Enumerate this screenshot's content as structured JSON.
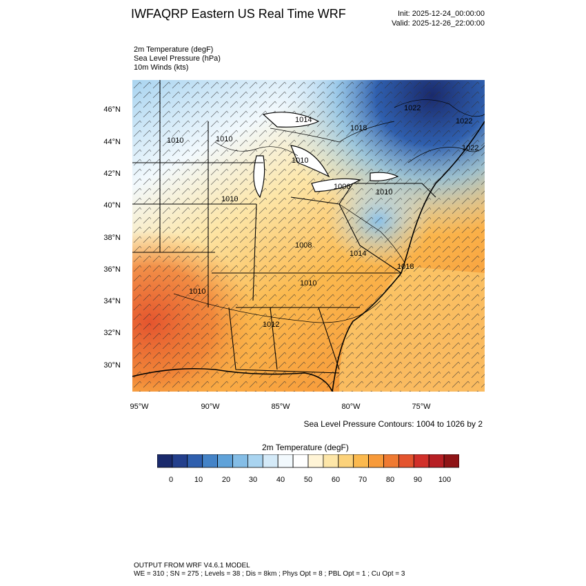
{
  "header": {
    "title": "IWFAQRP Eastern US Real Time WRF",
    "init": "Init: 2025-12-24_00:00:00",
    "valid": "Valid: 2025-12-26_22:00:00"
  },
  "variables": [
    "2m Temperature   (degF)",
    "Sea Level Pressure   (hPa)",
    "10m Winds   (kts)"
  ],
  "axes": {
    "lat_labels": [
      "46°N",
      "44°N",
      "42°N",
      "40°N",
      "38°N",
      "36°N",
      "34°N",
      "32°N",
      "30°N"
    ],
    "lon_labels": [
      "95°W",
      "90°W",
      "85°W",
      "80°W",
      "75°W"
    ]
  },
  "isobar_labels": [
    "1014",
    "1010",
    "1010",
    "1010",
    "1018",
    "1022",
    "1022",
    "1022",
    "1010",
    "1006",
    "1010",
    "1008",
    "1014",
    "1018",
    "1010",
    "1010",
    "1012"
  ],
  "contour_note": "Sea Level Pressure Contours: 1004 to 1026 by 2",
  "colorbar": {
    "title": "2m Temperature  (degF)",
    "labels": [
      "0",
      "10",
      "20",
      "30",
      "40",
      "50",
      "60",
      "70",
      "80",
      "90",
      "100"
    ],
    "colors": [
      "#1a2a6c",
      "#233f8c",
      "#2f5fae",
      "#4483c7",
      "#5fa2d9",
      "#84bde6",
      "#a9d4f0",
      "#d4eaf8",
      "#f2f9fd",
      "#ffffff",
      "#fff4d6",
      "#fde6a8",
      "#fcd27a",
      "#fbb94e",
      "#f79a3a",
      "#ef7a32",
      "#e4542e",
      "#d1302a",
      "#b71f24",
      "#8f1416"
    ]
  },
  "footer": {
    "line1": "OUTPUT FROM WRF V4.6.1 MODEL",
    "line2": "WE = 310 ; SN = 275 ; Levels = 38 ; Dis = 8km ; Phys Opt = 8 ; PBL Opt = 1 ; Cu Opt = 3"
  }
}
